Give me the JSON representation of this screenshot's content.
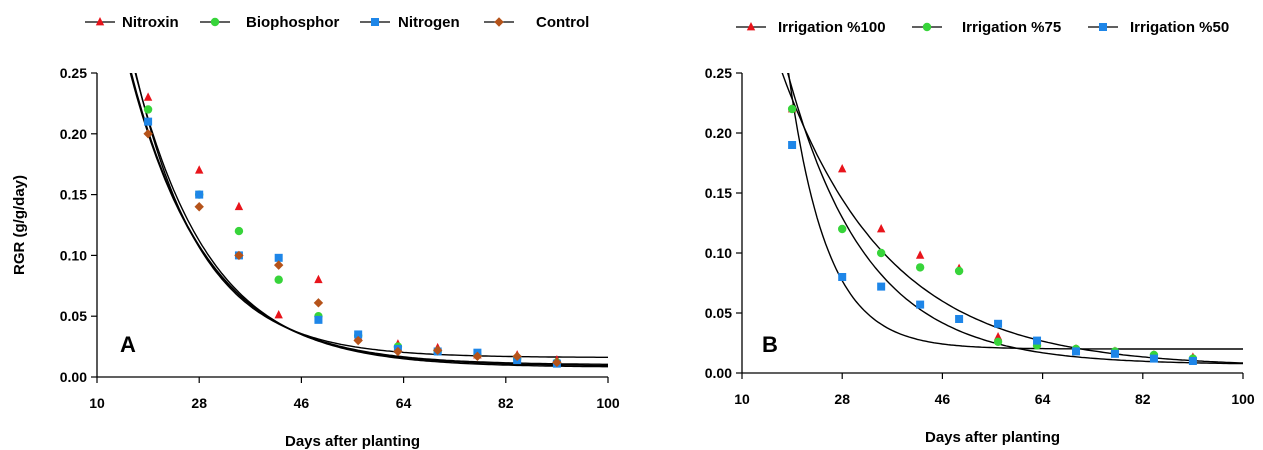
{
  "chart_data": [
    {
      "type": "scatter",
      "panel_label": "A",
      "xlabel": "Days after planting",
      "ylabel": "RGR (g/g/day)",
      "xlim": [
        10,
        100
      ],
      "ylim": [
        0,
        0.25
      ],
      "xticks": [
        10,
        28,
        46,
        64,
        82,
        100
      ],
      "yticks": [
        0.0,
        0.05,
        0.1,
        0.15,
        0.2,
        0.25
      ],
      "ytick_labels": [
        "0.00",
        "0.05",
        "0.10",
        "0.15",
        "0.20",
        "0.25"
      ],
      "grid": false,
      "legend": "top",
      "fit_curves": "exponential decay fit per series (black lines)",
      "series": [
        {
          "name": "Nitroxin",
          "marker": "triangle",
          "color": "#e8141b",
          "x": [
            19,
            28,
            35,
            42,
            49,
            56,
            63,
            70,
            77,
            84,
            91
          ],
          "y": [
            0.23,
            0.17,
            0.14,
            0.051,
            0.08,
            0.033,
            0.027,
            0.024,
            0.018,
            0.018,
            0.014
          ],
          "fit": {
            "a": 0.85,
            "k": 0.075,
            "c": 0.008
          }
        },
        {
          "name": "Biophosphor",
          "marker": "circle",
          "color": "#37d43a",
          "x": [
            19,
            28,
            35,
            42,
            49,
            56,
            63,
            70,
            77,
            84,
            91
          ],
          "y": [
            0.22,
            0.15,
            0.12,
            0.08,
            0.05,
            0.034,
            0.025,
            0.021,
            0.018,
            0.015,
            0.012
          ],
          "fit": {
            "a": 0.98,
            "k": 0.085,
            "c": 0.016
          }
        },
        {
          "name": "Nitrogen",
          "marker": "square",
          "color": "#1e86e8",
          "x": [
            19,
            28,
            35,
            42,
            49,
            56,
            63,
            70,
            77,
            84,
            91
          ],
          "y": [
            0.21,
            0.15,
            0.1,
            0.098,
            0.047,
            0.035,
            0.023,
            0.021,
            0.02,
            0.014,
            0.011
          ],
          "fit": {
            "a": 0.8,
            "k": 0.075,
            "c": 0.01
          }
        },
        {
          "name": "Control",
          "marker": "diamond",
          "color": "#b5531a",
          "x": [
            19,
            28,
            35,
            42,
            49,
            56,
            63,
            70,
            77,
            84,
            91
          ],
          "y": [
            0.2,
            0.14,
            0.1,
            0.092,
            0.061,
            0.03,
            0.021,
            0.022,
            0.017,
            0.017,
            0.012
          ],
          "fit": {
            "a": 0.78,
            "k": 0.074,
            "c": 0.009
          }
        }
      ]
    },
    {
      "type": "scatter",
      "panel_label": "B",
      "xlabel": "Days after planting",
      "ylabel": "",
      "xlim": [
        10,
        100
      ],
      "ylim": [
        0,
        0.25
      ],
      "xticks": [
        10,
        28,
        46,
        64,
        82,
        100
      ],
      "yticks": [
        0.0,
        0.05,
        0.1,
        0.15,
        0.2,
        0.25
      ],
      "ytick_labels": [
        "0.00",
        "0.05",
        "0.10",
        "0.15",
        "0.20",
        "0.25"
      ],
      "grid": false,
      "legend": "top",
      "fit_curves": "exponential decay fit per series (black lines)",
      "series": [
        {
          "name": "Irrigation %100",
          "marker": "triangle",
          "color": "#e8141b",
          "x": [
            19,
            28,
            35,
            42,
            49,
            56,
            63,
            70,
            77,
            84,
            91
          ],
          "y": [
            0.22,
            0.17,
            0.12,
            0.098,
            0.087,
            0.03,
            0.025,
            0.02,
            0.018,
            0.015,
            0.013
          ],
          "fit": {
            "a": 0.6,
            "k": 0.052,
            "c": 0.005
          }
        },
        {
          "name": "Irrigation %75",
          "marker": "circle",
          "color": "#37d43a",
          "x": [
            19,
            28,
            35,
            42,
            49,
            56,
            63,
            70,
            77,
            84,
            91
          ],
          "y": [
            0.22,
            0.12,
            0.1,
            0.088,
            0.085,
            0.026,
            0.023,
            0.02,
            0.018,
            0.015,
            0.012
          ],
          "fit": {
            "a": 0.87,
            "k": 0.07,
            "c": 0.007
          }
        },
        {
          "name": "Irrigation %50",
          "marker": "square",
          "color": "#1e86e8",
          "x": [
            19,
            28,
            35,
            42,
            49,
            56,
            63,
            70,
            77,
            84,
            91
          ],
          "y": [
            0.19,
            0.08,
            0.072,
            0.057,
            0.045,
            0.041,
            0.027,
            0.018,
            0.016,
            0.012,
            0.01
          ],
          "fit": {
            "a": 3.3,
            "k": 0.145,
            "c": 0.02
          }
        }
      ]
    }
  ]
}
